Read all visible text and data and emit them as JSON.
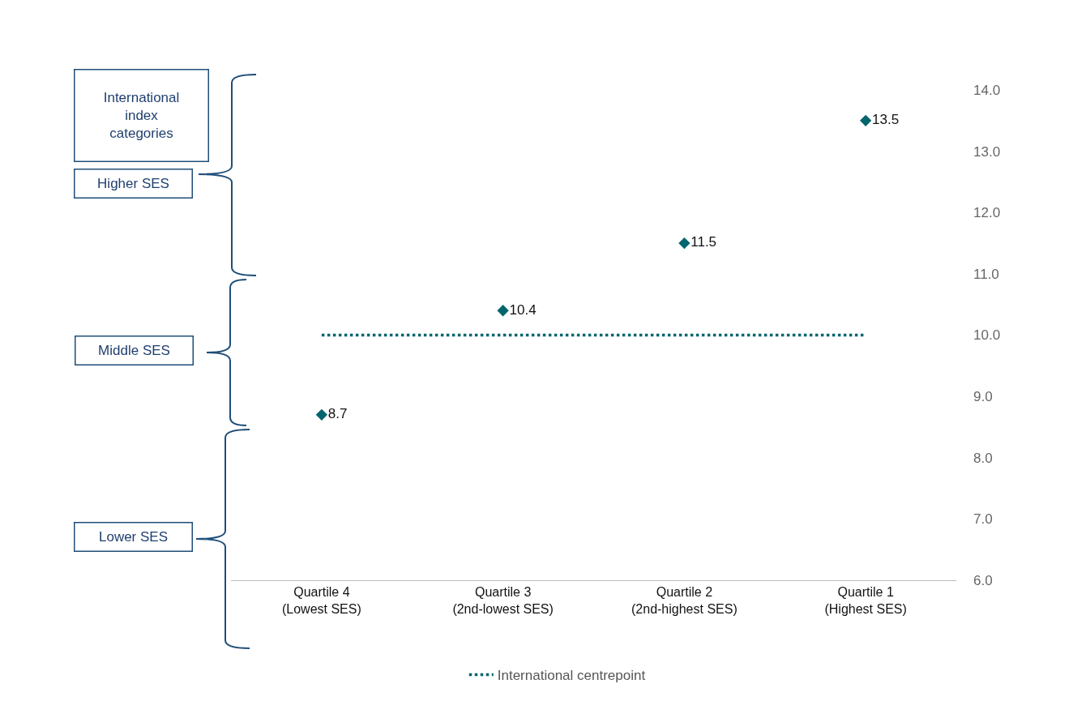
{
  "chart_data": {
    "type": "scatter",
    "categories": [
      "Quartile 4\n(Lowest SES)",
      "Quartile 3\n(2nd-lowest SES)",
      "Quartile 2\n(2nd-highest SES)",
      "Quartile 1\n(Highest SES)"
    ],
    "series": [
      {
        "color": "#00656e",
        "values": [
          8.7,
          10.4,
          11.5,
          13.5
        ],
        "value_labels": [
          "8.7",
          "10.4",
          "11.5",
          "13.5"
        ],
        "marker": "diamond"
      },
      {
        "type": "line",
        "name": "International centrepoint",
        "color": "#00656e",
        "values": [
          10.0,
          10.0,
          10.0,
          10.0
        ],
        "marker": "none",
        "line_style": "dotted"
      }
    ],
    "ylim": [
      6.0,
      14.0
    ],
    "yticks": [
      {
        "value": 6,
        "label": "6.0"
      },
      {
        "value": 7,
        "label": "7.0"
      },
      {
        "value": 8,
        "label": "8.0"
      },
      {
        "value": 9,
        "label": "9.0"
      },
      {
        "value": 10,
        "label": "10.0"
      },
      {
        "value": 11,
        "label": "11.0"
      },
      {
        "value": 12,
        "label": "12.0"
      },
      {
        "value": 13,
        "label": "13.0"
      },
      {
        "value": 14,
        "label": "14.0"
      }
    ],
    "legend": "bottom",
    "annotations": [
      "International index categories",
      "Higher SES",
      "Middle SES",
      "Lower SES"
    ]
  }
}
